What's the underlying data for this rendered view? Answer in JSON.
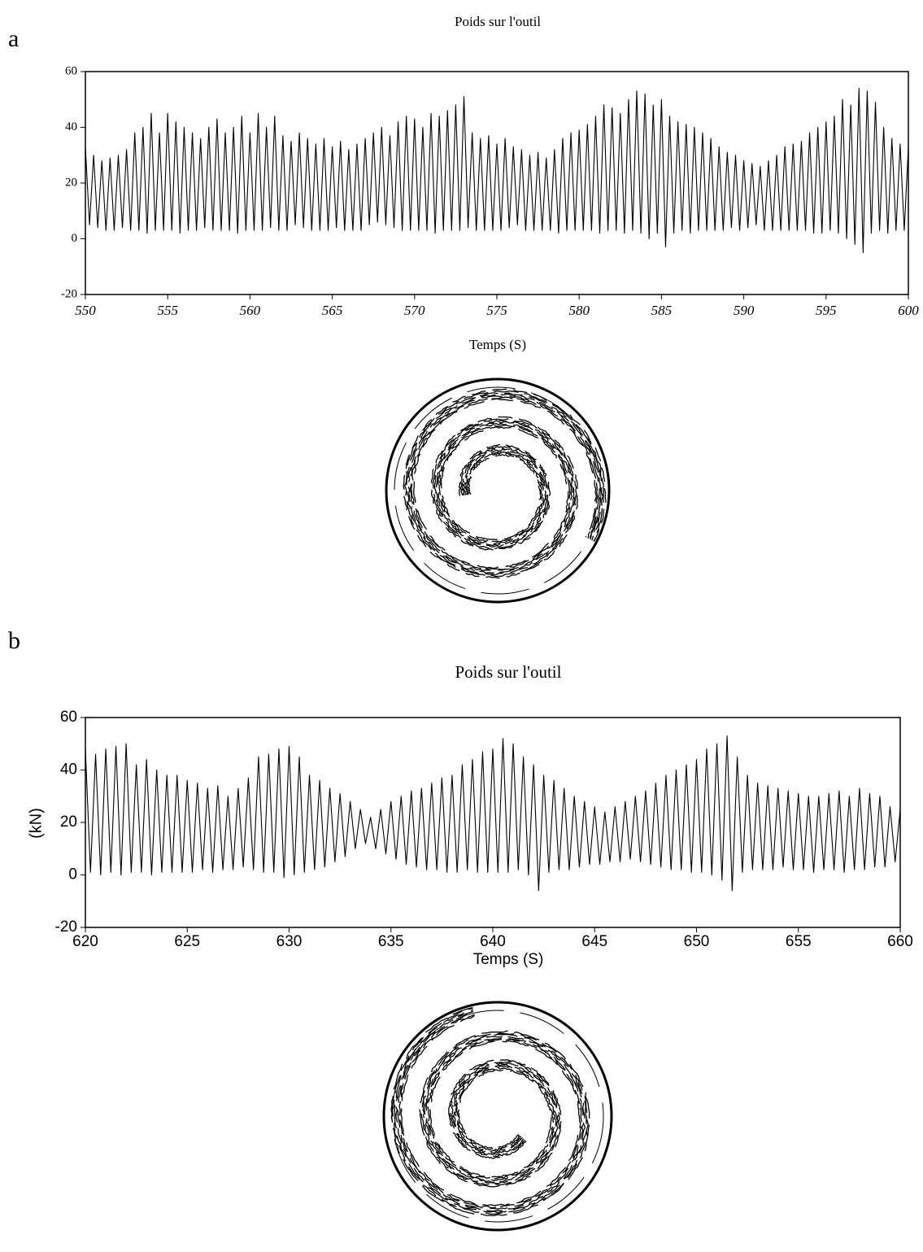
{
  "chart_data": [
    {
      "type": "line",
      "label": "a",
      "title": "Poids sur l'outil",
      "xlabel": "Temps (S)",
      "color": "#000000",
      "xlim": [
        550,
        600
      ],
      "ylim": [
        -20,
        60
      ],
      "xticks": [
        550,
        555,
        560,
        565,
        570,
        575,
        580,
        585,
        590,
        595,
        600
      ],
      "yticks": [
        -20,
        0,
        20,
        40,
        60
      ],
      "x": [
        550,
        550.25,
        550.5,
        550.75,
        551,
        551.25,
        551.5,
        551.75,
        552,
        552.25,
        552.5,
        552.75,
        553,
        553.25,
        553.5,
        553.75,
        554,
        554.25,
        554.5,
        554.75,
        555,
        555.25,
        555.5,
        555.75,
        556,
        556.25,
        556.5,
        556.75,
        557,
        557.25,
        557.5,
        557.75,
        558,
        558.25,
        558.5,
        558.75,
        559,
        559.25,
        559.5,
        559.75,
        560,
        560.25,
        560.5,
        560.75,
        561,
        561.25,
        561.5,
        561.75,
        562,
        562.25,
        562.5,
        562.75,
        563,
        563.25,
        563.5,
        563.75,
        564,
        564.25,
        564.5,
        564.75,
        565,
        565.25,
        565.5,
        565.75,
        566,
        566.25,
        566.5,
        566.75,
        567,
        567.25,
        567.5,
        567.75,
        568,
        568.25,
        568.5,
        568.75,
        569,
        569.25,
        569.5,
        569.75,
        570,
        570.25,
        570.5,
        570.75,
        571,
        571.25,
        571.5,
        571.75,
        572,
        572.25,
        572.5,
        572.75,
        573,
        573.25,
        573.5,
        573.75,
        574,
        574.25,
        574.5,
        574.75,
        575,
        575.25,
        575.5,
        575.75,
        576,
        576.25,
        576.5,
        576.75,
        577,
        577.25,
        577.5,
        577.75,
        578,
        578.25,
        578.5,
        578.75,
        579,
        579.25,
        579.5,
        579.75,
        580,
        580.25,
        580.5,
        580.75,
        581,
        581.25,
        581.5,
        581.75,
        582,
        582.25,
        582.5,
        582.75,
        583,
        583.25,
        583.5,
        583.75,
        584,
        584.25,
        584.5,
        584.75,
        585,
        585.25,
        585.5,
        585.75,
        586,
        586.25,
        586.5,
        586.75,
        587,
        587.25,
        587.5,
        587.75,
        588,
        588.25,
        588.5,
        588.75,
        589,
        589.25,
        589.5,
        589.75,
        590,
        590.25,
        590.5,
        590.75,
        591,
        591.25,
        591.5,
        591.75,
        592,
        592.25,
        592.5,
        592.75,
        593,
        593.25,
        593.5,
        593.75,
        594,
        594.25,
        594.5,
        594.75,
        595,
        595.25,
        595.5,
        595.75,
        596,
        596.25,
        596.5,
        596.75,
        597,
        597.25,
        597.5,
        597.75,
        598,
        598.25,
        598.5,
        598.75,
        599,
        599.25,
        599.5,
        599.75,
        600
      ],
      "values": [
        33,
        5,
        30,
        4,
        28,
        3,
        29,
        3,
        30,
        4,
        32,
        3,
        38,
        3,
        40,
        2,
        45,
        3,
        38,
        3,
        45,
        3,
        42,
        2,
        40,
        3,
        38,
        3,
        36,
        4,
        40,
        3,
        43,
        3,
        38,
        3,
        40,
        2,
        44,
        3,
        38,
        3,
        45,
        3,
        40,
        4,
        44,
        3,
        37,
        3,
        35,
        5,
        38,
        4,
        36,
        3,
        34,
        3,
        36,
        3,
        33,
        4,
        35,
        3,
        32,
        3,
        34,
        3,
        36,
        5,
        38,
        6,
        40,
        5,
        37,
        4,
        42,
        3,
        44,
        3,
        43,
        3,
        40,
        3,
        45,
        2,
        44,
        3,
        46,
        3,
        48,
        3,
        51,
        4,
        38,
        3,
        36,
        3,
        37,
        3,
        34,
        3,
        36,
        4,
        33,
        5,
        32,
        3,
        30,
        3,
        31,
        3,
        29,
        3,
        32,
        2,
        36,
        3,
        38,
        3,
        39,
        3,
        41,
        3,
        44,
        2,
        48,
        3,
        47,
        3,
        45,
        2,
        50,
        3,
        53,
        2,
        52,
        0,
        48,
        2,
        50,
        -3,
        44,
        2,
        42,
        3,
        41,
        2,
        40,
        3,
        38,
        3,
        36,
        3,
        33,
        3,
        31,
        4,
        30,
        3,
        28,
        4,
        27,
        5,
        26,
        3,
        28,
        3,
        30,
        3,
        33,
        3,
        34,
        3,
        35,
        3,
        38,
        2,
        40,
        2,
        42,
        3,
        44,
        2,
        50,
        0,
        48,
        -2,
        54,
        -5,
        53,
        2,
        49,
        3,
        40,
        2,
        36,
        3,
        34,
        3,
        33
      ]
    },
    {
      "type": "line",
      "label": "b",
      "title": "Poids sur l'outil",
      "xlabel": "Temps (S)",
      "ylabel": "(kN)",
      "color": "#000000",
      "xlim": [
        620,
        660
      ],
      "ylim": [
        -20,
        60
      ],
      "xticks": [
        620,
        625,
        630,
        635,
        640,
        645,
        650,
        655,
        660
      ],
      "yticks": [
        -20,
        0,
        20,
        40,
        60
      ],
      "x": [
        620,
        620.25,
        620.5,
        620.75,
        621,
        621.25,
        621.5,
        621.75,
        622,
        622.25,
        622.5,
        622.75,
        623,
        623.25,
        623.5,
        623.75,
        624,
        624.25,
        624.5,
        624.75,
        625,
        625.25,
        625.5,
        625.75,
        626,
        626.25,
        626.5,
        626.75,
        627,
        627.25,
        627.5,
        627.75,
        628,
        628.25,
        628.5,
        628.75,
        629,
        629.25,
        629.5,
        629.75,
        630,
        630.25,
        630.5,
        630.75,
        631,
        631.25,
        631.5,
        631.75,
        632,
        632.25,
        632.5,
        632.75,
        633,
        633.25,
        633.5,
        633.75,
        634,
        634.25,
        634.5,
        634.75,
        635,
        635.25,
        635.5,
        635.75,
        636,
        636.25,
        636.5,
        636.75,
        637,
        637.25,
        637.5,
        637.75,
        638,
        638.25,
        638.5,
        638.75,
        639,
        639.25,
        639.5,
        639.75,
        640,
        640.25,
        640.5,
        640.75,
        641,
        641.25,
        641.5,
        641.75,
        642,
        642.25,
        642.5,
        642.75,
        643,
        643.25,
        643.5,
        643.75,
        644,
        644.25,
        644.5,
        644.75,
        645,
        645.25,
        645.5,
        645.75,
        646,
        646.25,
        646.5,
        646.75,
        647,
        647.25,
        647.5,
        647.75,
        648,
        648.25,
        648.5,
        648.75,
        649,
        649.25,
        649.5,
        649.75,
        650,
        650.25,
        650.5,
        650.75,
        651,
        651.25,
        651.5,
        651.75,
        652,
        652.25,
        652.5,
        652.75,
        653,
        653.25,
        653.5,
        653.75,
        654,
        654.25,
        654.5,
        654.75,
        655,
        655.25,
        655.5,
        655.75,
        656,
        656.25,
        656.5,
        656.75,
        657,
        657.25,
        657.5,
        657.75,
        658,
        658.25,
        658.5,
        658.75,
        659,
        659.25,
        659.5,
        659.75,
        660
      ],
      "values": [
        48,
        1,
        46,
        0,
        48,
        1,
        49,
        0,
        50,
        1,
        42,
        1,
        44,
        0,
        40,
        1,
        38,
        1,
        38,
        1,
        36,
        1,
        35,
        2,
        33,
        1,
        34,
        2,
        30,
        2,
        33,
        3,
        37,
        2,
        45,
        1,
        46,
        1,
        48,
        -1,
        49,
        0,
        45,
        1,
        38,
        2,
        36,
        3,
        33,
        5,
        31,
        7,
        28,
        10,
        25,
        12,
        22,
        10,
        25,
        8,
        28,
        6,
        30,
        4,
        32,
        3,
        33,
        2,
        35,
        2,
        37,
        1,
        38,
        1,
        42,
        2,
        44,
        1,
        47,
        1,
        48,
        1,
        52,
        1,
        50,
        2,
        45,
        0,
        42,
        -6,
        38,
        1,
        36,
        2,
        33,
        2,
        30,
        3,
        28,
        4,
        26,
        4,
        24,
        5,
        26,
        5,
        28,
        6,
        30,
        5,
        32,
        4,
        35,
        3,
        38,
        2,
        40,
        2,
        42,
        1,
        44,
        1,
        48,
        0,
        50,
        -2,
        53,
        -6,
        45,
        1,
        38,
        2,
        35,
        2,
        34,
        2,
        33,
        3,
        32,
        2,
        31,
        2,
        30,
        1,
        30,
        2,
        31,
        2,
        32,
        1,
        30,
        2,
        33,
        2,
        31,
        3,
        30,
        3,
        26,
        5,
        25
      ]
    }
  ]
}
